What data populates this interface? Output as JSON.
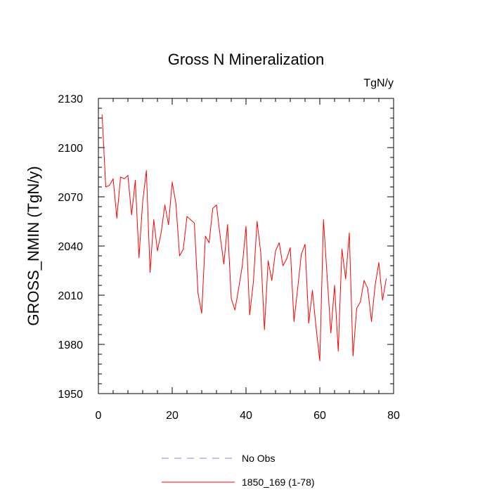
{
  "chart_data": {
    "type": "line",
    "title": "Gross N Mineralization",
    "units": "TgN/y",
    "xlabel": "",
    "ylabel": "GROSS_NMIN  (TgN/y)",
    "xlim": [
      0,
      80
    ],
    "ylim": [
      1950,
      2130
    ],
    "x_ticks": [
      0,
      20,
      40,
      60,
      80
    ],
    "y_ticks": [
      1950,
      1980,
      2010,
      2040,
      2070,
      2100,
      2130
    ],
    "x_minor_step": 4,
    "y_minor_step": 6,
    "grid": false,
    "legend": [
      {
        "name": "No Obs",
        "color": "#8080ff",
        "style": "dashed"
      },
      {
        "name": "1850_169 (1-78)",
        "color": "#ff0000",
        "style": "solid"
      }
    ],
    "series": [
      {
        "name": "1850_169 (1-78)",
        "color": "#ff0000",
        "x": [
          1,
          2,
          3,
          4,
          5,
          6,
          7,
          8,
          9,
          10,
          11,
          12,
          13,
          14,
          15,
          16,
          17,
          18,
          19,
          20,
          21,
          22,
          23,
          24,
          25,
          26,
          27,
          28,
          29,
          30,
          31,
          32,
          33,
          34,
          35,
          36,
          37,
          38,
          39,
          40,
          41,
          42,
          43,
          44,
          45,
          46,
          47,
          48,
          49,
          50,
          51,
          52,
          53,
          54,
          55,
          56,
          57,
          58,
          59,
          60,
          61,
          62,
          63,
          64,
          65,
          66,
          67,
          68,
          69,
          70,
          71,
          72,
          73,
          74,
          75,
          76,
          77,
          78
        ],
        "values": [
          2120,
          2076,
          2077,
          2081,
          2057,
          2082,
          2081,
          2083,
          2059,
          2080,
          2033,
          2067,
          2086,
          2024,
          2056,
          2037,
          2048,
          2065,
          2053,
          2079,
          2066,
          2034,
          2038,
          2058,
          2056,
          2054,
          2011,
          1999,
          2046,
          2042,
          2063,
          2065,
          2046,
          2029,
          2053,
          2008,
          2001,
          2014,
          2028,
          2052,
          1998,
          2018,
          2055,
          2036,
          1989,
          2031,
          2019,
          2037,
          2042,
          2028,
          2032,
          2039,
          1994,
          2014,
          2035,
          2041,
          1993,
          2013,
          1990,
          1970,
          2056,
          2021,
          1987,
          2016,
          1976,
          2038,
          2020,
          2048,
          1973,
          2002,
          2006,
          2019,
          2014,
          1994,
          2016,
          2030,
          2007,
          2020
        ]
      }
    ]
  }
}
